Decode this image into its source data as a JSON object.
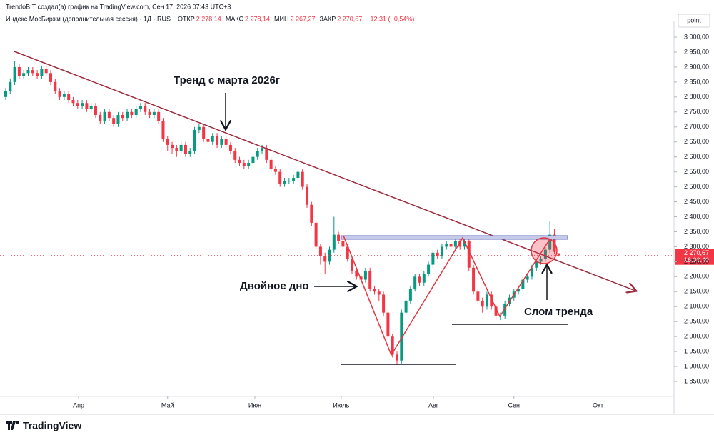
{
  "header": {
    "created_by": "TrendoBIT создал(а) график на TradingView.com, Сен 17, 2026 07:43 UTC+3"
  },
  "footer": {
    "logo": "TradingView"
  },
  "chart_data": {
    "type": "candlestick",
    "title": "Индекс МосБиржи (дополнительная сессия) · 1Д · RUS",
    "legend": [
      {
        "key": "ОТКР",
        "text": "2 278,14"
      },
      {
        "key": "МАКС",
        "text": "2 278,14"
      },
      {
        "key": "МИН",
        "text": "2 267,27"
      },
      {
        "key": "ЗАКР",
        "text": "2 270,67"
      }
    ],
    "change": "−12,31 (−0,54%)",
    "scale_mode": "point",
    "annotations": [
      "Тренд с марта 2026г",
      "Двойное дно",
      "Слом тренда"
    ],
    "last_price": {
      "value": 2270.67,
      "label": "2 270,67"
    },
    "timer": "16:06:40",
    "up_color": "#089981",
    "down_color": "#f23645",
    "series": [
      {
        "name": "Индекс МосБиржи (дополнительная сессия)",
        "open": [
          2800,
          2820,
          2850,
          2900,
          2870,
          2880,
          2890,
          2880,
          2870,
          2895,
          2880,
          2850,
          2820,
          2800,
          2810,
          2790,
          2780,
          2770,
          2780,
          2760,
          2770,
          2740,
          2720,
          2750,
          2730,
          2710,
          2740,
          2730,
          2750,
          2740,
          2760,
          2770,
          2750,
          2740,
          2750,
          2720,
          2660,
          2640,
          2630,
          2620,
          2640,
          2610,
          2620,
          2690,
          2700,
          2660,
          2650,
          2670,
          2640,
          2660,
          2640,
          2620,
          2590,
          2580,
          2570,
          2580,
          2600,
          2620,
          2630,
          2590,
          2560,
          2550,
          2510,
          2520,
          2520,
          2530,
          2550,
          2500,
          2440,
          2380,
          2300,
          2270,
          2250,
          2290,
          2340,
          2320,
          2300,
          2260,
          2220,
          2200,
          2190,
          2220,
          2160,
          2150,
          2140,
          2080,
          2000,
          1940,
          1920,
          2080,
          2120,
          2160,
          2200,
          2180,
          2210,
          2240,
          2280,
          2270,
          2300,
          2310,
          2300,
          2320,
          2300,
          2320,
          2230,
          2150,
          2120,
          2100,
          2140,
          2100,
          2070,
          2070,
          2110,
          2130,
          2150,
          2160,
          2190,
          2200,
          2230,
          2250,
          2260,
          2290,
          2340,
          2278.14
        ],
        "high": [
          2830,
          2862,
          2920,
          2910,
          2890,
          2900,
          2900,
          2890,
          2905,
          2905,
          2890,
          2860,
          2830,
          2820,
          2820,
          2800,
          2790,
          2790,
          2790,
          2780,
          2780,
          2750,
          2760,
          2760,
          2740,
          2750,
          2750,
          2760,
          2760,
          2770,
          2780,
          2780,
          2760,
          2760,
          2760,
          2730,
          2670,
          2650,
          2640,
          2650,
          2650,
          2630,
          2700,
          2710,
          2710,
          2670,
          2680,
          2680,
          2670,
          2670,
          2650,
          2630,
          2600,
          2590,
          2590,
          2610,
          2630,
          2640,
          2640,
          2600,
          2570,
          2560,
          2530,
          2530,
          2540,
          2560,
          2560,
          2510,
          2450,
          2390,
          2310,
          2280,
          2300,
          2400,
          2350,
          2330,
          2310,
          2270,
          2230,
          2210,
          2230,
          2230,
          2170,
          2160,
          2150,
          2090,
          2010,
          1950,
          2090,
          2130,
          2170,
          2210,
          2210,
          2220,
          2250,
          2290,
          2290,
          2310,
          2320,
          2320,
          2330,
          2330,
          2330,
          2330,
          2240,
          2160,
          2130,
          2150,
          2150,
          2110,
          2080,
          2120,
          2140,
          2160,
          2170,
          2200,
          2210,
          2240,
          2260,
          2270,
          2300,
          2385,
          2360,
          2278.14
        ],
        "low": [
          2790,
          2810,
          2840,
          2860,
          2860,
          2870,
          2870,
          2860,
          2860,
          2870,
          2840,
          2810,
          2790,
          2790,
          2780,
          2770,
          2760,
          2760,
          2750,
          2750,
          2730,
          2710,
          2710,
          2720,
          2700,
          2700,
          2720,
          2720,
          2730,
          2730,
          2750,
          2740,
          2730,
          2730,
          2710,
          2650,
          2620,
          2610,
          2600,
          2610,
          2600,
          2600,
          2610,
          2680,
          2650,
          2640,
          2640,
          2630,
          2630,
          2630,
          2610,
          2580,
          2570,
          2560,
          2560,
          2570,
          2590,
          2610,
          2580,
          2550,
          2540,
          2500,
          2500,
          2510,
          2510,
          2520,
          2490,
          2430,
          2370,
          2290,
          2240,
          2210,
          2240,
          2280,
          2310,
          2290,
          2250,
          2210,
          2190,
          2170,
          2180,
          2150,
          2140,
          2120,
          2070,
          1990,
          1930,
          1905,
          1910,
          2070,
          2110,
          2150,
          2170,
          2170,
          2200,
          2230,
          2260,
          2260,
          2290,
          2290,
          2290,
          2290,
          2290,
          2220,
          2140,
          2110,
          2080,
          2090,
          2090,
          2055,
          2055,
          2060,
          2100,
          2120,
          2140,
          2150,
          2180,
          2190,
          2220,
          2240,
          2250,
          2280,
          2275,
          2267.27
        ],
        "close": [
          2820,
          2850,
          2900,
          2870,
          2880,
          2890,
          2880,
          2870,
          2895,
          2880,
          2850,
          2820,
          2800,
          2810,
          2790,
          2780,
          2770,
          2780,
          2760,
          2770,
          2740,
          2720,
          2750,
          2730,
          2710,
          2740,
          2730,
          2750,
          2740,
          2760,
          2770,
          2750,
          2740,
          2750,
          2720,
          2660,
          2640,
          2630,
          2620,
          2640,
          2610,
          2620,
          2690,
          2700,
          2660,
          2650,
          2670,
          2640,
          2660,
          2640,
          2620,
          2590,
          2580,
          2570,
          2580,
          2600,
          2620,
          2630,
          2590,
          2560,
          2550,
          2510,
          2520,
          2520,
          2530,
          2550,
          2500,
          2440,
          2380,
          2300,
          2270,
          2250,
          2290,
          2340,
          2320,
          2300,
          2260,
          2220,
          2200,
          2190,
          2220,
          2160,
          2150,
          2140,
          2080,
          2000,
          1940,
          1920,
          2080,
          2120,
          2160,
          2200,
          2180,
          2210,
          2240,
          2280,
          2270,
          2300,
          2310,
          2300,
          2320,
          2300,
          2320,
          2230,
          2150,
          2120,
          2100,
          2140,
          2100,
          2070,
          2070,
          2110,
          2130,
          2150,
          2160,
          2190,
          2200,
          2230,
          2250,
          2260,
          2290,
          2340,
          2282.98,
          2270.67
        ]
      }
    ],
    "xlim": [
      -1.27,
      148.6
    ],
    "xticks": [
      {
        "value": 16.2,
        "label": "Апр"
      },
      {
        "value": 36.0,
        "label": "Май"
      },
      {
        "value": 55.4,
        "label": "Июн"
      },
      {
        "value": 74.6,
        "label": "Июль"
      },
      {
        "value": 95.1,
        "label": "Авг"
      },
      {
        "value": 113.0,
        "label": "Сен"
      },
      {
        "value": 131.7,
        "label": "Окт"
      }
    ],
    "ylim": [
      1800,
      3052.5
    ],
    "yticks": [
      {
        "value": 1850,
        "label": "1 850,00"
      },
      {
        "value": 1900,
        "label": "1 900,00"
      },
      {
        "value": 1950,
        "label": "1 950,00"
      },
      {
        "value": 2000,
        "label": "2 000,00"
      },
      {
        "value": 2050,
        "label": "2 050,00"
      },
      {
        "value": 2100,
        "label": "2 100,00"
      },
      {
        "value": 2150,
        "label": "2 150,00"
      },
      {
        "value": 2200,
        "label": "2 200,00"
      },
      {
        "value": 2250,
        "label": "2 250,00"
      },
      {
        "value": 2300,
        "label": "2 300,00"
      },
      {
        "value": 2350,
        "label": "2 350,00"
      },
      {
        "value": 2400,
        "label": "2 400,00"
      },
      {
        "value": 2450,
        "label": "2 450,00"
      },
      {
        "value": 2500,
        "label": "2 500,00"
      },
      {
        "value": 2550,
        "label": "2 550,00"
      },
      {
        "value": 2600,
        "label": "2 600,00"
      },
      {
        "value": 2650,
        "label": "2 650,00"
      },
      {
        "value": 2700,
        "label": "2 700,00"
      },
      {
        "value": 2750,
        "label": "2 750,00"
      },
      {
        "value": 2800,
        "label": "2 800,00"
      },
      {
        "value": 2850,
        "label": "2 850,00"
      },
      {
        "value": 2900,
        "label": "2 900,00"
      },
      {
        "value": 2950,
        "label": "2 950,00"
      },
      {
        "value": 3000,
        "label": "3 000,00"
      }
    ]
  }
}
